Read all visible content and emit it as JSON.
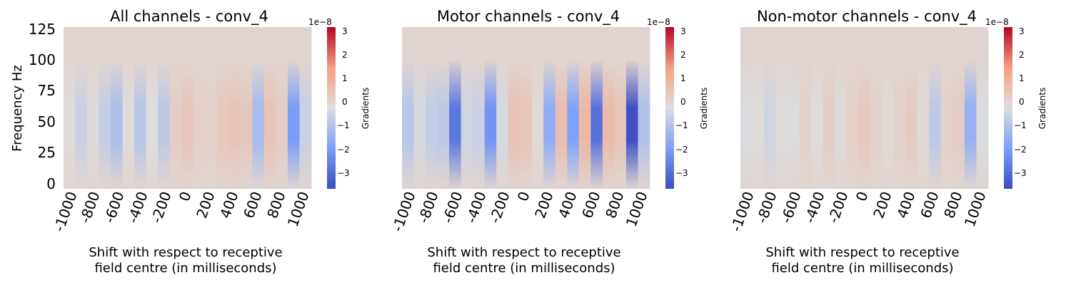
{
  "chart_data": [
    {
      "type": "heatmap",
      "title": "All channels - conv_4",
      "xlabel_lines": [
        "Shift with respect to receptive",
        "field centre (in milliseconds)"
      ],
      "ylabel": "Frequency Hz",
      "x_ticks": [
        "-1000",
        "-800",
        "-600",
        "-400",
        "-200",
        "0",
        "200",
        "400",
        "600",
        "800",
        "1000"
      ],
      "y_ticks": [
        "125",
        "100",
        "75",
        "50",
        "25",
        "0"
      ],
      "colorbar": {
        "label": "Gradients",
        "exponent": "1e−8",
        "ticks": [
          "3",
          "2",
          "1",
          "0",
          "−1",
          "−2",
          "−3"
        ],
        "range": [
          -3.7,
          3.2
        ],
        "colormap": "coolwarm"
      },
      "columns": [
        {
          "x": -1000,
          "v": -0.2
        },
        {
          "x": -900,
          "v": -0.6
        },
        {
          "x": -800,
          "v": -0.15
        },
        {
          "x": -700,
          "v": -0.7
        },
        {
          "x": -600,
          "v": -1.1
        },
        {
          "x": -500,
          "v": -0.2
        },
        {
          "x": -400,
          "v": -0.9
        },
        {
          "x": -300,
          "v": -0.25
        },
        {
          "x": -200,
          "v": -0.8
        },
        {
          "x": -100,
          "v": 0.2
        },
        {
          "x": 0,
          "v": 0.4
        },
        {
          "x": 100,
          "v": 0.15
        },
        {
          "x": 200,
          "v": 0.1
        },
        {
          "x": 300,
          "v": 0.35
        },
        {
          "x": 400,
          "v": 0.45
        },
        {
          "x": 500,
          "v": 0.35
        },
        {
          "x": 600,
          "v": -1.2
        },
        {
          "x": 700,
          "v": 0.45
        },
        {
          "x": 800,
          "v": 0.2
        },
        {
          "x": 900,
          "v": -2.0
        },
        {
          "x": 1000,
          "v": -0.6
        }
      ]
    },
    {
      "type": "heatmap",
      "title": "Motor channels - conv_4",
      "xlabel_lines": [
        "Shift with respect to receptive",
        "field centre (in milliseconds)"
      ],
      "ylabel": "",
      "x_ticks": [
        "-1000",
        "-800",
        "-600",
        "-400",
        "-200",
        "0",
        "200",
        "400",
        "600",
        "800",
        "1000"
      ],
      "y_ticks": [],
      "colorbar": {
        "label": "Gradients",
        "exponent": "1e−8",
        "ticks": [
          "3",
          "2",
          "1",
          "0",
          "−1",
          "−2",
          "−3"
        ],
        "range": [
          -3.7,
          3.2
        ],
        "colormap": "coolwarm"
      },
      "columns": [
        {
          "x": -1000,
          "v": -0.9
        },
        {
          "x": -900,
          "v": -0.4
        },
        {
          "x": -800,
          "v": -0.7
        },
        {
          "x": -700,
          "v": -0.8
        },
        {
          "x": -600,
          "v": -2.8
        },
        {
          "x": -500,
          "v": -0.5
        },
        {
          "x": -400,
          "v": -0.6
        },
        {
          "x": -300,
          "v": -2.2
        },
        {
          "x": -200,
          "v": -0.4
        },
        {
          "x": -100,
          "v": 0.5
        },
        {
          "x": 0,
          "v": 0.4
        },
        {
          "x": 100,
          "v": -0.1
        },
        {
          "x": 200,
          "v": -1.6
        },
        {
          "x": 300,
          "v": 0.6
        },
        {
          "x": 400,
          "v": -1.9
        },
        {
          "x": 500,
          "v": 0.8
        },
        {
          "x": 600,
          "v": -2.9
        },
        {
          "x": 700,
          "v": 0.7
        },
        {
          "x": 800,
          "v": 0.4
        },
        {
          "x": 900,
          "v": -3.6
        },
        {
          "x": 1000,
          "v": -1.0
        }
      ]
    },
    {
      "type": "heatmap",
      "title": "Non-motor channels - conv_4",
      "xlabel_lines": [
        "Shift with respect to receptive",
        "field centre (in milliseconds)"
      ],
      "ylabel": "",
      "x_ticks": [
        "-1000",
        "-800",
        "-600",
        "-400",
        "-200",
        "0",
        "200",
        "400",
        "600",
        "800",
        "1000"
      ],
      "y_ticks": [],
      "colorbar": {
        "label": "Gradients",
        "exponent": "1e−8",
        "ticks": [
          "3",
          "2",
          "1",
          "0",
          "−1",
          "−2",
          "−3"
        ],
        "range": [
          -3.7,
          3.2
        ],
        "colormap": "coolwarm"
      },
      "columns": [
        {
          "x": -1000,
          "v": -0.3
        },
        {
          "x": -900,
          "v": -0.2
        },
        {
          "x": -800,
          "v": -0.5
        },
        {
          "x": -700,
          "v": -0.2
        },
        {
          "x": -600,
          "v": -0.3
        },
        {
          "x": -500,
          "v": 0.1
        },
        {
          "x": -400,
          "v": -0.2
        },
        {
          "x": -300,
          "v": 0.2
        },
        {
          "x": -200,
          "v": -0.15
        },
        {
          "x": -100,
          "v": 0.15
        },
        {
          "x": 0,
          "v": 0.35
        },
        {
          "x": 100,
          "v": 0.1
        },
        {
          "x": 200,
          "v": -0.1
        },
        {
          "x": 300,
          "v": 0.1
        },
        {
          "x": 400,
          "v": 0.25
        },
        {
          "x": 500,
          "v": -0.1
        },
        {
          "x": 600,
          "v": -0.8
        },
        {
          "x": 700,
          "v": 0.1
        },
        {
          "x": 800,
          "v": 0.2
        },
        {
          "x": 900,
          "v": -1.5
        },
        {
          "x": 1000,
          "v": -0.3
        }
      ]
    }
  ]
}
